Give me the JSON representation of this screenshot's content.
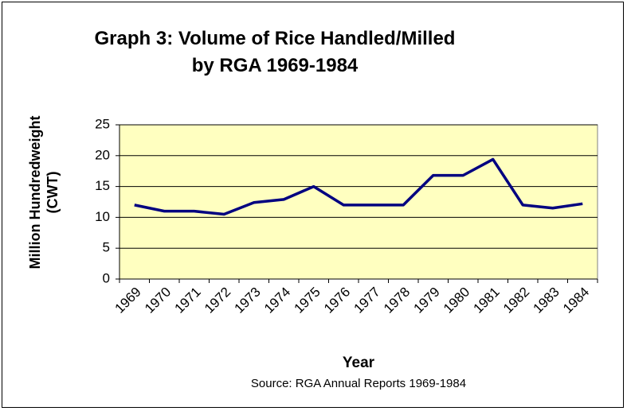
{
  "chart_data": {
    "type": "line",
    "title": "Graph 3: Volume of Rice Handled/Milled by RGA 1969-1984",
    "y_label": "Million Hundredweight (CWT)",
    "x_label": "Year",
    "source": "Source: RGA Annual Reports 1969-1984",
    "categories": [
      "1969",
      "1970",
      "1971",
      "1972",
      "1973",
      "1974",
      "1975",
      "1976",
      "1977",
      "1978",
      "1979",
      "1980",
      "1981",
      "1982",
      "1983",
      "1984"
    ],
    "values": [
      12,
      11,
      11,
      10.5,
      12.4,
      12.9,
      15,
      12,
      12,
      12,
      16.8,
      16.8,
      19.4,
      12,
      11.5,
      12.2
    ],
    "color": "#000080",
    "ylim": [
      0,
      25
    ],
    "yticks": [
      0,
      5,
      10,
      15,
      20,
      25
    ],
    "grid": true
  }
}
